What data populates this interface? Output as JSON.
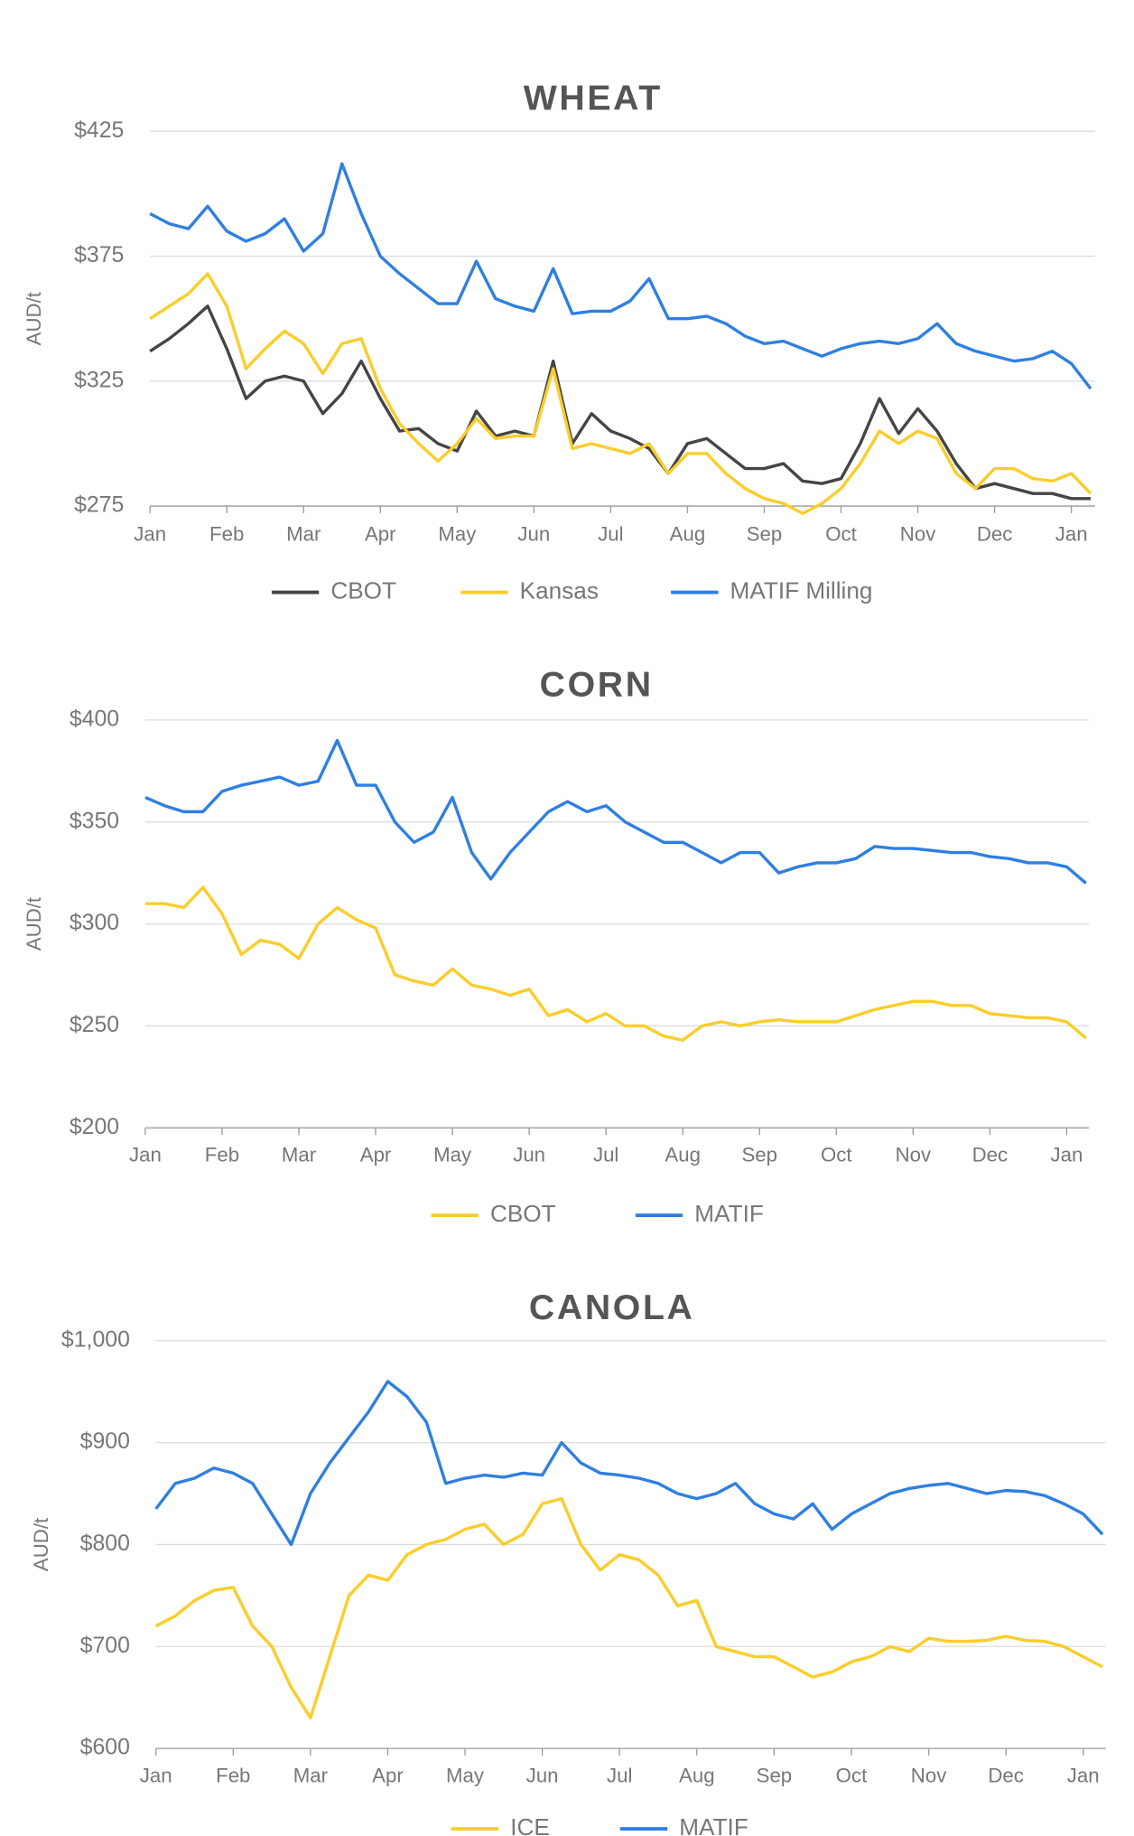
{
  "chart_data": [
    {
      "type": "line",
      "title": "WHEAT",
      "y_label": "AUD/t",
      "categories": [
        "Jan",
        null,
        null,
        null,
        "Feb",
        null,
        null,
        null,
        "Mar",
        null,
        null,
        null,
        "Apr",
        null,
        null,
        null,
        "May",
        null,
        null,
        null,
        "Jun",
        null,
        null,
        null,
        "Jul",
        null,
        null,
        null,
        "Aug",
        null,
        null,
        null,
        "Sep",
        null,
        null,
        null,
        "Oct",
        null,
        null,
        null,
        "Nov",
        null,
        null,
        null,
        "Dec",
        null,
        null,
        null,
        "Jan",
        null
      ],
      "ylim": [
        275,
        425
      ],
      "yticks": [
        {
          "value": 275,
          "label": "$275"
        },
        {
          "value": 325,
          "label": "$325"
        },
        {
          "value": 375,
          "label": "$375"
        },
        {
          "value": 425,
          "label": "$425"
        }
      ],
      "grid": true,
      "series": [
        {
          "name": "CBOT",
          "color": "#454545",
          "values": [
            337,
            342,
            348,
            355,
            338,
            318,
            325,
            327,
            325,
            312,
            320,
            333,
            318,
            305,
            306,
            300,
            297,
            313,
            303,
            305,
            303,
            333,
            300,
            312,
            305,
            302,
            298,
            288,
            300,
            302,
            296,
            290,
            290,
            292,
            285,
            284,
            286,
            300,
            318,
            304,
            314,
            305,
            292,
            282,
            284,
            282,
            280,
            280,
            278,
            278
          ]
        },
        {
          "name": "Kansas",
          "color": "#fbcd2b",
          "values": [
            350,
            355,
            360,
            368,
            355,
            330,
            338,
            345,
            340,
            328,
            340,
            342,
            322,
            308,
            300,
            293,
            300,
            310,
            302,
            303,
            303,
            330,
            298,
            300,
            298,
            296,
            300,
            288,
            296,
            296,
            288,
            282,
            278,
            276,
            272,
            276,
            282,
            292,
            305,
            300,
            305,
            302,
            288,
            282,
            290,
            290,
            286,
            285,
            288,
            280
          ]
        },
        {
          "name": "MATIF Milling",
          "color": "#2f7fe2",
          "values": [
            392,
            388,
            386,
            395,
            385,
            381,
            384,
            390,
            377,
            384,
            412,
            392,
            375,
            368,
            362,
            356,
            356,
            373,
            358,
            355,
            353,
            370,
            352,
            353,
            353,
            357,
            366,
            350,
            350,
            351,
            348,
            343,
            340,
            341,
            338,
            335,
            338,
            340,
            341,
            340,
            342,
            348,
            340,
            337,
            335,
            333,
            334,
            337,
            332,
            322
          ]
        }
      ]
    },
    {
      "type": "line",
      "title": "CORN",
      "y_label": "AUD/t",
      "categories": [
        "Jan",
        null,
        null,
        null,
        "Feb",
        null,
        null,
        null,
        "Mar",
        null,
        null,
        null,
        "Apr",
        null,
        null,
        null,
        "May",
        null,
        null,
        null,
        "Jun",
        null,
        null,
        null,
        "Jul",
        null,
        null,
        null,
        "Aug",
        null,
        null,
        null,
        "Sep",
        null,
        null,
        null,
        "Oct",
        null,
        null,
        null,
        "Nov",
        null,
        null,
        null,
        "Dec",
        null,
        null,
        null,
        "Jan",
        null
      ],
      "ylim": [
        200,
        400
      ],
      "yticks": [
        {
          "value": 200,
          "label": "$200"
        },
        {
          "value": 250,
          "label": "$250"
        },
        {
          "value": 300,
          "label": "$300"
        },
        {
          "value": 350,
          "label": "$350"
        },
        {
          "value": 400,
          "label": "$400"
        }
      ],
      "grid": true,
      "series": [
        {
          "name": "CBOT",
          "color": "#fbcd2b",
          "values": [
            310,
            310,
            308,
            318,
            305,
            285,
            292,
            290,
            283,
            300,
            308,
            302,
            298,
            275,
            272,
            270,
            278,
            270,
            268,
            265,
            268,
            255,
            258,
            252,
            256,
            250,
            250,
            245,
            243,
            250,
            252,
            250,
            252,
            253,
            252,
            252,
            252,
            255,
            258,
            260,
            262,
            262,
            260,
            260,
            256,
            255,
            254,
            254,
            252,
            244
          ]
        },
        {
          "name": "MATIF",
          "color": "#2f7fe2",
          "values": [
            362,
            358,
            355,
            355,
            365,
            368,
            370,
            372,
            368,
            370,
            390,
            368,
            368,
            350,
            340,
            345,
            362,
            335,
            322,
            335,
            345,
            355,
            360,
            355,
            358,
            350,
            345,
            340,
            340,
            335,
            330,
            335,
            335,
            325,
            328,
            330,
            330,
            332,
            338,
            337,
            337,
            336,
            335,
            335,
            333,
            332,
            330,
            330,
            328,
            320
          ]
        }
      ]
    },
    {
      "type": "line",
      "title": "CANOLA",
      "y_label": "AUD/t",
      "categories": [
        "Jan",
        null,
        null,
        null,
        "Feb",
        null,
        null,
        null,
        "Mar",
        null,
        null,
        null,
        "Apr",
        null,
        null,
        null,
        "May",
        null,
        null,
        null,
        "Jun",
        null,
        null,
        null,
        "Jul",
        null,
        null,
        null,
        "Aug",
        null,
        null,
        null,
        "Sep",
        null,
        null,
        null,
        "Oct",
        null,
        null,
        null,
        "Nov",
        null,
        null,
        null,
        "Dec",
        null,
        null,
        null,
        "Jan",
        null
      ],
      "ylim": [
        600,
        1000
      ],
      "yticks": [
        {
          "value": 600,
          "label": "$600"
        },
        {
          "value": 700,
          "label": "$700"
        },
        {
          "value": 800,
          "label": "$800"
        },
        {
          "value": 900,
          "label": "$900"
        },
        {
          "value": 1000,
          "label": "$1,000"
        }
      ],
      "grid": true,
      "series": [
        {
          "name": "ICE",
          "color": "#fbcd2b",
          "values": [
            720,
            730,
            745,
            755,
            758,
            720,
            700,
            660,
            630,
            690,
            750,
            770,
            765,
            790,
            800,
            805,
            815,
            820,
            800,
            810,
            840,
            845,
            800,
            775,
            790,
            785,
            770,
            740,
            745,
            700,
            695,
            690,
            690,
            680,
            670,
            675,
            685,
            690,
            700,
            695,
            708,
            705,
            705,
            706,
            710,
            706,
            705,
            700,
            690,
            680
          ]
        },
        {
          "name": "MATIF",
          "color": "#2f7fe2",
          "values": [
            835,
            860,
            865,
            875,
            870,
            860,
            830,
            800,
            850,
            880,
            905,
            930,
            960,
            945,
            920,
            860,
            865,
            868,
            866,
            870,
            868,
            900,
            880,
            870,
            868,
            865,
            860,
            850,
            845,
            850,
            860,
            840,
            830,
            825,
            840,
            815,
            830,
            840,
            850,
            855,
            858,
            860,
            855,
            850,
            853,
            852,
            848,
            840,
            830,
            810
          ]
        }
      ]
    }
  ]
}
